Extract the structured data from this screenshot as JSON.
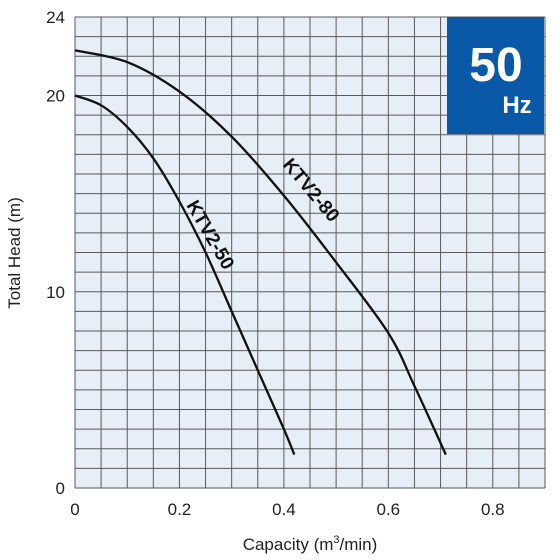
{
  "chart_data": {
    "type": "line",
    "xlabel_main": "Capacity (m",
    "xlabel_sup": "3",
    "xlabel_tail": "/min)",
    "ylabel": "Total Head (m)",
    "xlim": [
      0,
      0.9
    ],
    "ylim": [
      0,
      24
    ],
    "x_ticks": [
      0,
      0.2,
      0.4,
      0.6,
      0.8
    ],
    "x_tick_labels": [
      "0",
      "0.2",
      "0.4",
      "0.6",
      "0.8"
    ],
    "y_ticks": [
      0,
      10,
      20,
      24
    ],
    "y_tick_labels": [
      "0",
      "10",
      "20",
      "24"
    ],
    "grid": true,
    "grid_x_step": 0.05,
    "grid_y_step": 1,
    "plot_background": "#e6eef8",
    "grid_color": "#5a5a5a",
    "series": [
      {
        "name": "KTV2-50",
        "points": [
          [
            0,
            20.0
          ],
          [
            0.05,
            19.5
          ],
          [
            0.1,
            18.4
          ],
          [
            0.15,
            16.8
          ],
          [
            0.2,
            14.6
          ],
          [
            0.25,
            12.0
          ],
          [
            0.3,
            9.0
          ],
          [
            0.35,
            6.0
          ],
          [
            0.4,
            3.0
          ],
          [
            0.42,
            1.7
          ]
        ]
      },
      {
        "name": "KTV2-80",
        "points": [
          [
            0,
            22.3
          ],
          [
            0.1,
            21.7
          ],
          [
            0.2,
            20.2
          ],
          [
            0.3,
            17.9
          ],
          [
            0.4,
            14.9
          ],
          [
            0.5,
            11.5
          ],
          [
            0.6,
            7.9
          ],
          [
            0.65,
            5.2
          ],
          [
            0.71,
            1.7
          ]
        ]
      }
    ],
    "badge": {
      "main": "50",
      "sub": "Hz",
      "color": "#0a58a8"
    }
  }
}
